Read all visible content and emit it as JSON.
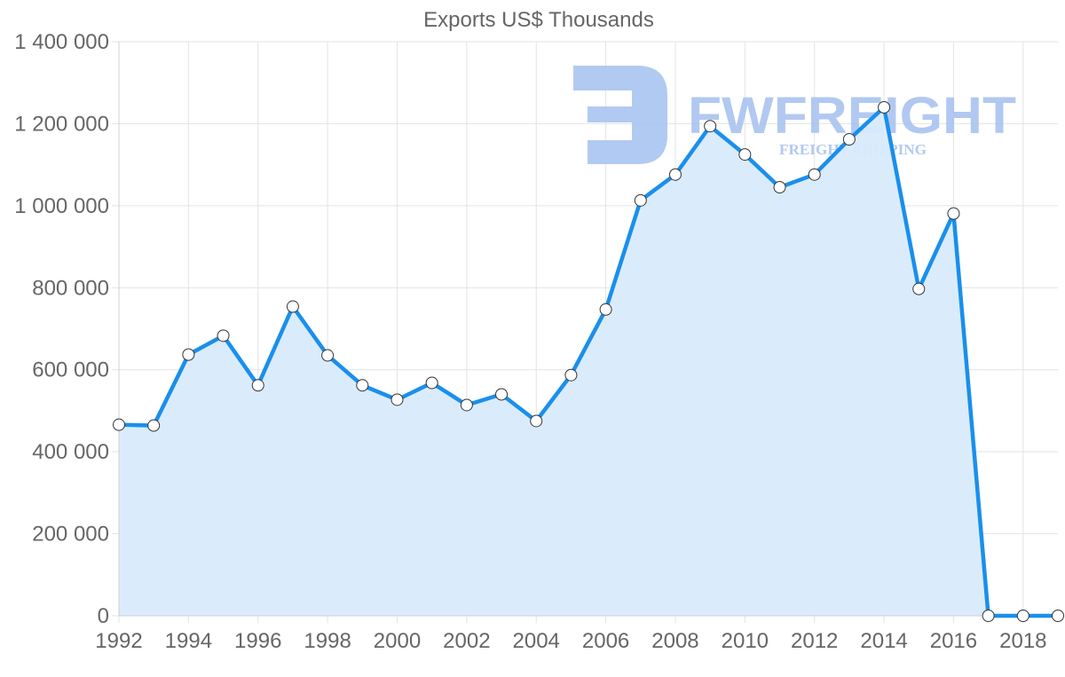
{
  "chart_data": {
    "type": "area",
    "title": "Exports US$ Thousands",
    "xlabel": "",
    "ylabel": "",
    "x": [
      1992,
      1993,
      1994,
      1995,
      1996,
      1997,
      1998,
      1999,
      2000,
      2001,
      2002,
      2003,
      2004,
      2005,
      2006,
      2007,
      2008,
      2009,
      2010,
      2011,
      2012,
      2013,
      2014,
      2015,
      2016,
      2017,
      2018,
      2019
    ],
    "series": [
      {
        "name": "Exports US$ Thousands",
        "values": [
          466000,
          464000,
          637000,
          683000,
          562000,
          754000,
          635000,
          562000,
          527000,
          568000,
          514000,
          540000,
          475000,
          587000,
          747000,
          1013000,
          1076000,
          1194000,
          1125000,
          1045000,
          1076000,
          1162000,
          1240000,
          797000,
          981000,
          0,
          0,
          0
        ]
      }
    ],
    "x_tick_labels": [
      "1992",
      "1994",
      "1996",
      "1998",
      "2000",
      "2002",
      "2004",
      "2006",
      "2008",
      "2010",
      "2012",
      "2014",
      "2016",
      "2018"
    ],
    "y_tick_labels": [
      "0",
      "200 000",
      "400 000",
      "600 000",
      "800 000",
      "1 000 000",
      "1 200 000",
      "1 400 000"
    ],
    "ylim": [
      0,
      1400000
    ],
    "xlim": [
      1992,
      2019
    ],
    "grid": true,
    "legend": "none",
    "line_color": "#1a8fec",
    "fill_color": "#d8ebfc",
    "point_fill": "#ffffff",
    "point_stroke": "#333333"
  },
  "watermark": {
    "brand": "FWFREIGHT",
    "tagline": "FREIGHT SHIPPING"
  }
}
